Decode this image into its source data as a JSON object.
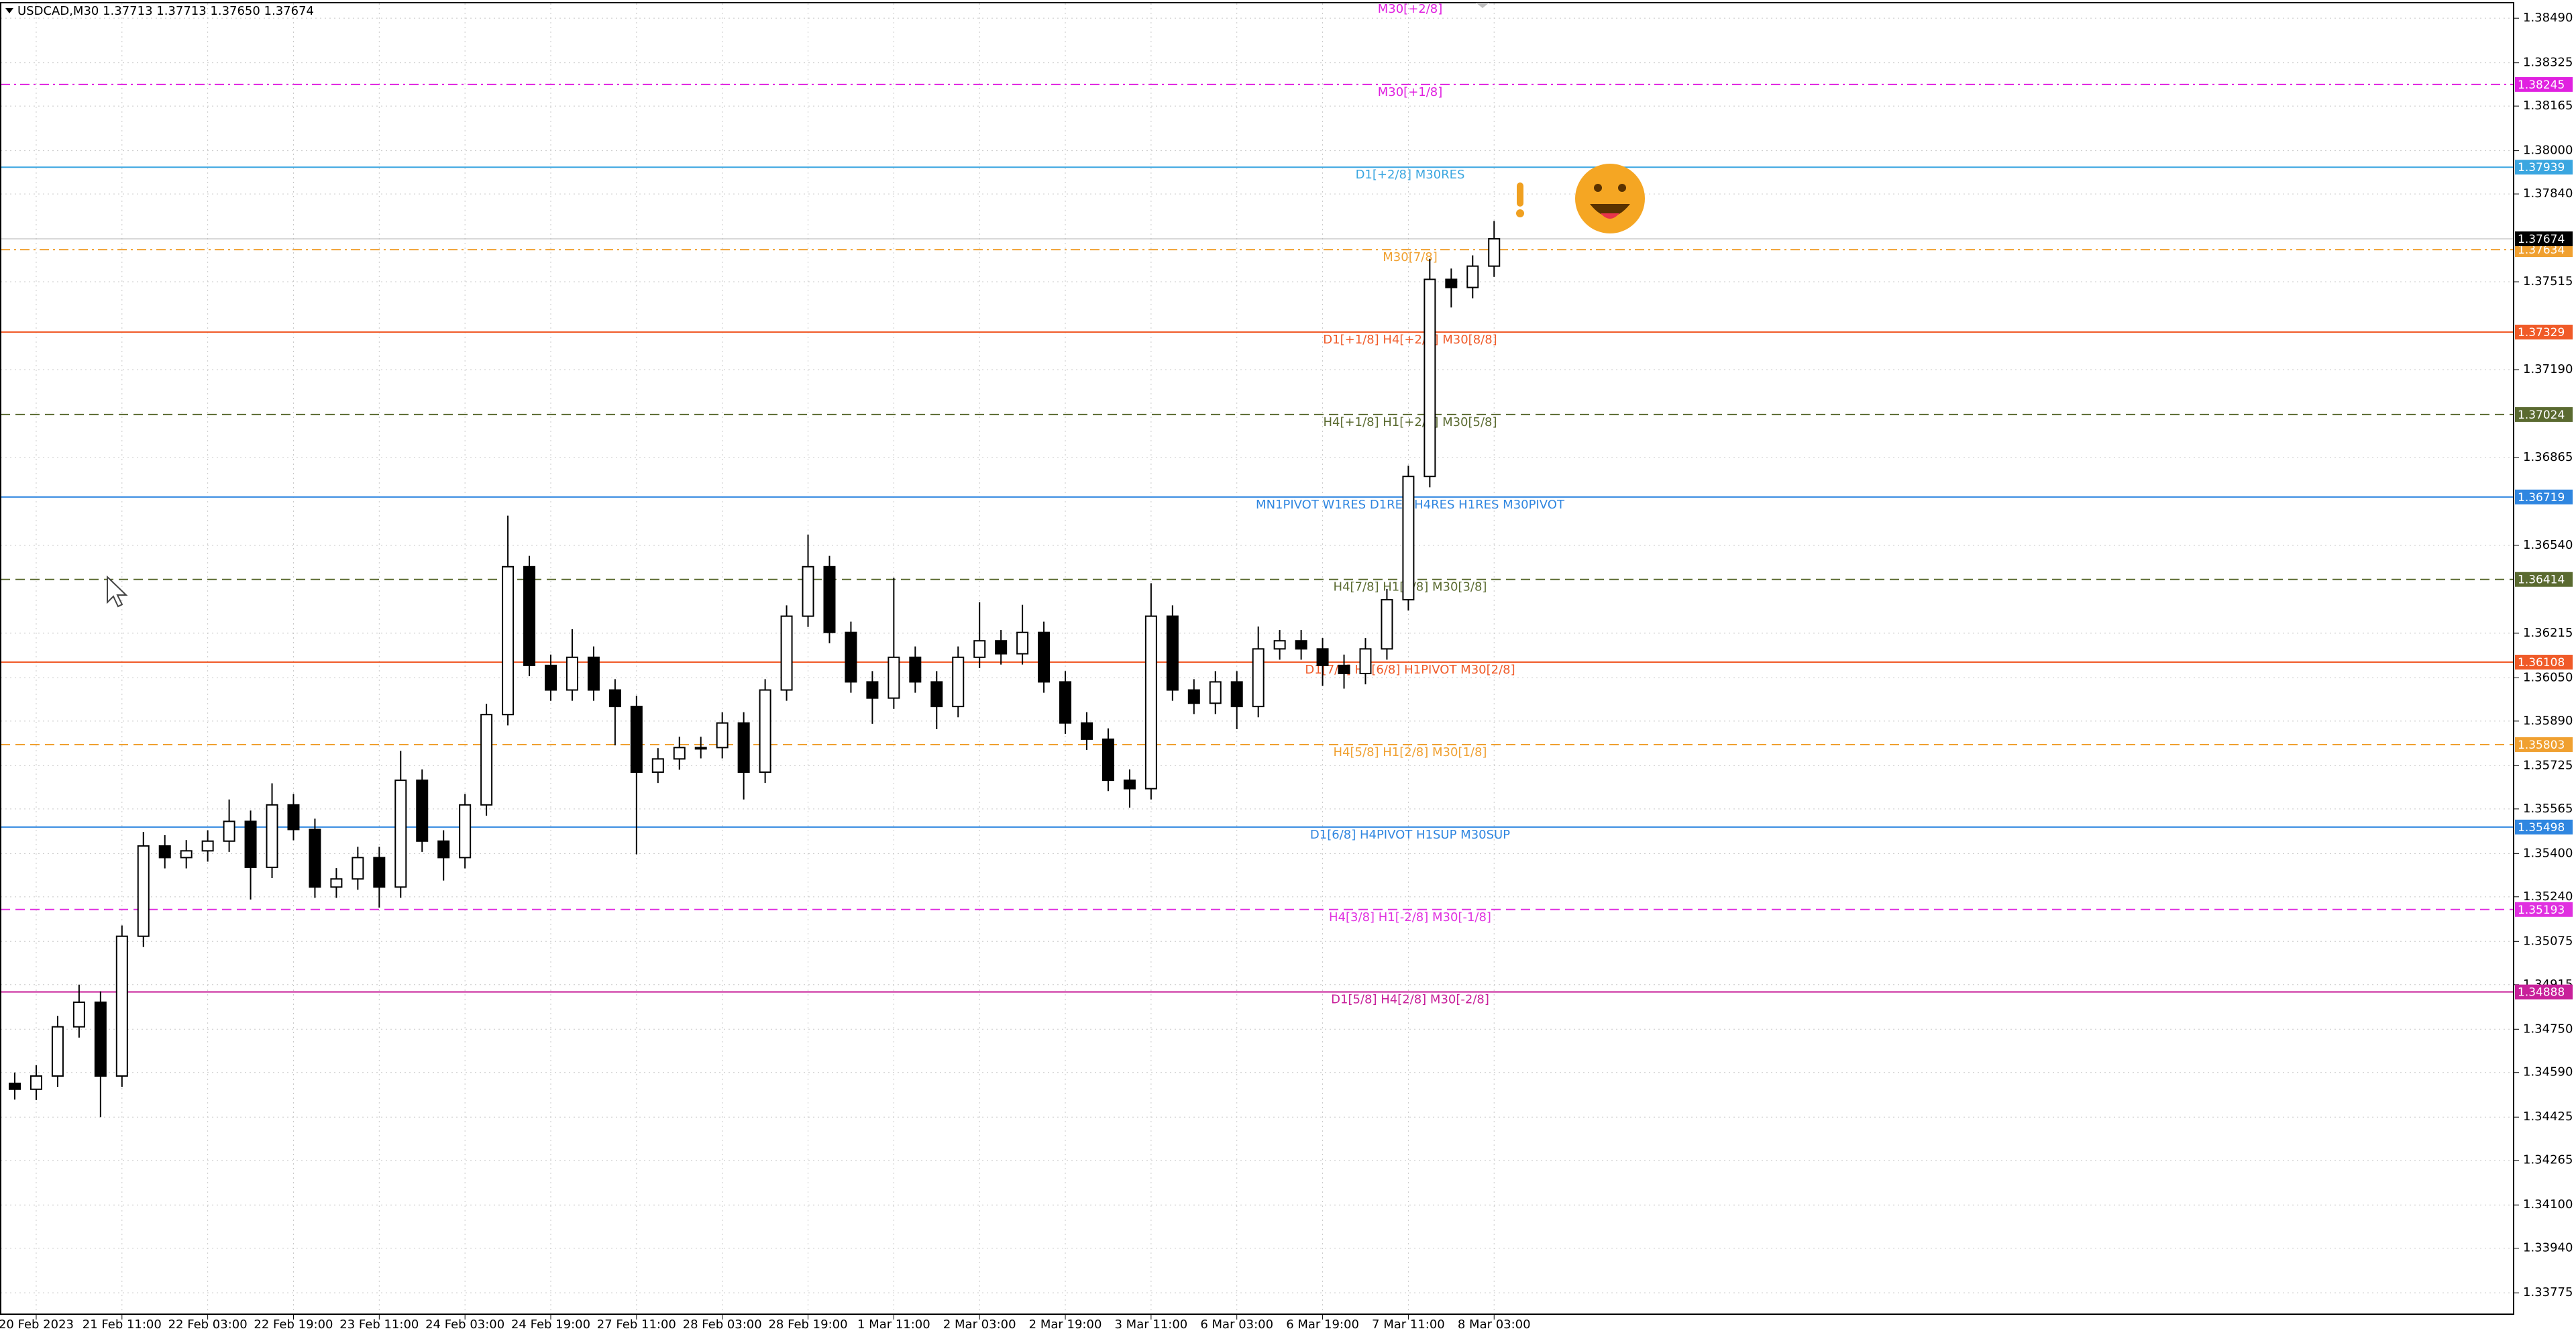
{
  "chart_data": {
    "type": "candlestick",
    "header": "USDCAD,M30  1.37713 1.37713 1.37650 1.37674",
    "top_label": "M30[+2/8]",
    "categories": [
      null,
      "20 Feb 2023",
      null,
      null,
      null,
      "21 Feb 11:00",
      null,
      null,
      null,
      "22 Feb 03:00",
      null,
      null,
      null,
      "22 Feb 19:00",
      null,
      null,
      null,
      "23 Feb 11:00",
      null,
      null,
      null,
      "24 Feb 03:00",
      null,
      null,
      null,
      "24 Feb 19:00",
      null,
      null,
      null,
      "27 Feb 11:00",
      null,
      null,
      null,
      "28 Feb 03:00",
      null,
      null,
      null,
      "28 Feb 19:00",
      null,
      null,
      null,
      "1 Mar 11:00",
      null,
      null,
      null,
      "2 Mar 03:00",
      null,
      null,
      null,
      "2 Mar 19:00",
      null,
      null,
      null,
      "3 Mar 11:00",
      null,
      null,
      null,
      "6 Mar 03:00",
      null,
      null,
      null,
      "6 Mar 19:00",
      null,
      null,
      null,
      "7 Mar 11:00",
      null,
      null,
      null,
      "8 Mar 03:00"
    ],
    "open": [
      1.3455,
      1.34528,
      1.34577,
      1.34759,
      1.3485,
      1.34577,
      1.35094,
      1.35428,
      1.35385,
      1.3541,
      1.35446,
      1.35519,
      1.35349,
      1.3558,
      1.35489,
      1.35276,
      1.35306,
      1.35385,
      1.35276,
      1.35671,
      1.35446,
      1.35385,
      1.3558,
      1.35914,
      1.36461,
      1.36096,
      1.36005,
      1.36126,
      1.36005,
      1.35944,
      1.35701,
      1.3575,
      1.35792,
      1.35792,
      1.35883,
      1.35701,
      1.36005,
      1.36278,
      1.36461,
      1.36218,
      1.36035,
      1.35975,
      1.36126,
      1.36035,
      1.35944,
      1.36126,
      1.36187,
      1.36139,
      1.36218,
      1.36035,
      1.35883,
      1.35823,
      1.35671,
      1.3564,
      1.36278,
      1.36005,
      1.35956,
      1.36035,
      1.35944,
      1.36157,
      1.36187,
      1.36157,
      1.36096,
      1.36066,
      1.36157,
      1.36339,
      1.36795,
      1.37524,
      1.37494,
      1.37573
    ],
    "high": [
      1.3459,
      1.34617,
      1.34799,
      1.34915,
      1.3489,
      1.35134,
      1.3548,
      1.35468,
      1.3545,
      1.35486,
      1.356,
      1.35559,
      1.3566,
      1.3562,
      1.35529,
      1.35346,
      1.35425,
      1.35425,
      1.3578,
      1.35711,
      1.35486,
      1.3562,
      1.35954,
      1.3665,
      1.36501,
      1.36136,
      1.3623,
      1.36166,
      1.36045,
      1.35984,
      1.3579,
      1.35832,
      1.35832,
      1.35923,
      1.35923,
      1.36045,
      1.36318,
      1.3658,
      1.36501,
      1.36258,
      1.36075,
      1.3642,
      1.36166,
      1.36075,
      1.36166,
      1.3633,
      1.36227,
      1.3632,
      1.36258,
      1.36075,
      1.35923,
      1.35863,
      1.35711,
      1.364,
      1.36318,
      1.36045,
      1.36075,
      1.36075,
      1.3624,
      1.36227,
      1.36227,
      1.36197,
      1.36136,
      1.36197,
      1.36379,
      1.36835,
      1.376,
      1.37564,
      1.37613,
      1.3774
    ],
    "low": [
      1.3449,
      1.34488,
      1.34537,
      1.34719,
      1.34425,
      1.34537,
      1.35054,
      1.35345,
      1.35345,
      1.3537,
      1.35406,
      1.3523,
      1.35309,
      1.35449,
      1.35236,
      1.35236,
      1.35266,
      1.352,
      1.35236,
      1.35406,
      1.353,
      1.35345,
      1.3554,
      1.35874,
      1.36056,
      1.35965,
      1.35965,
      1.35965,
      1.358,
      1.35397,
      1.35661,
      1.3571,
      1.35752,
      1.35752,
      1.356,
      1.35661,
      1.35965,
      1.36238,
      1.36178,
      1.35995,
      1.3588,
      1.35935,
      1.35995,
      1.3586,
      1.35904,
      1.36086,
      1.36099,
      1.36099,
      1.35995,
      1.35843,
      1.35783,
      1.35631,
      1.3557,
      1.356,
      1.35965,
      1.35916,
      1.35916,
      1.3586,
      1.35904,
      1.36117,
      1.36117,
      1.3602,
      1.3601,
      1.36026,
      1.36117,
      1.36299,
      1.36755,
      1.3742,
      1.37454,
      1.37533
    ],
    "close": [
      1.34528,
      1.34577,
      1.34759,
      1.3485,
      1.34577,
      1.35094,
      1.35428,
      1.35385,
      1.3541,
      1.35446,
      1.35519,
      1.35349,
      1.3558,
      1.35489,
      1.35276,
      1.35306,
      1.35385,
      1.35276,
      1.35671,
      1.35446,
      1.35385,
      1.3558,
      1.35914,
      1.36461,
      1.36096,
      1.36005,
      1.36126,
      1.36005,
      1.35944,
      1.35701,
      1.3575,
      1.35792,
      1.35792,
      1.35883,
      1.35701,
      1.36005,
      1.36278,
      1.36461,
      1.36218,
      1.36035,
      1.35975,
      1.36126,
      1.36035,
      1.35944,
      1.36126,
      1.36187,
      1.36139,
      1.36218,
      1.36035,
      1.35883,
      1.35823,
      1.35671,
      1.3564,
      1.36278,
      1.36005,
      1.35956,
      1.36035,
      1.35944,
      1.36157,
      1.36187,
      1.36157,
      1.36096,
      1.36066,
      1.36157,
      1.36339,
      1.36795,
      1.37524,
      1.37494,
      1.37573,
      1.37674
    ],
    "levels": [
      {
        "label": "M30[+1/8]",
        "value": 1.38245,
        "color": "#e020e0",
        "line_style": "dashdot"
      },
      {
        "label": "D1[+2/8] M30RES",
        "value": 1.37939,
        "color": "#3aa6e0",
        "line_style": "solid"
      },
      {
        "label": "M30[7/8]",
        "value": 1.37634,
        "color": "#f0a030",
        "line_style": "dashdot"
      },
      {
        "label": "D1[+1/8] H4[+2/8] M30[8/8]",
        "value": 1.37329,
        "color": "#f05a28",
        "line_style": "solid"
      },
      {
        "label": "H4[+1/8] H1[+2/8] M30[5/8]",
        "value": 1.37024,
        "color": "#5a6a30",
        "line_style": "dashed"
      },
      {
        "label": "MN1PIVOT W1RES D1RES H4RES H1RES M30PIVOT",
        "value": 1.36719,
        "color": "#2f86e0",
        "line_style": "solid"
      },
      {
        "label": "H4[7/8] H1[6/8] M30[3/8]",
        "value": 1.36414,
        "color": "#5a6a30",
        "line_style": "dashed"
      },
      {
        "label": "D1[7/8] H4[6/8] H1PIVOT M30[2/8]",
        "value": 1.36108,
        "color": "#f05a28",
        "line_style": "solid"
      },
      {
        "label": "H4[5/8] H1[2/8] M30[1/8]",
        "value": 1.35803,
        "color": "#f0a030",
        "line_style": "dashed"
      },
      {
        "label": "D1[6/8] H4PIVOT H1SUP M30SUP",
        "value": 1.35498,
        "color": "#2f86e0",
        "line_style": "solid"
      },
      {
        "label": "H4[3/8] H1[-2/8] M30[-1/8]",
        "value": 1.35193,
        "color": "#e030e0",
        "line_style": "dashed"
      },
      {
        "label": "D1[5/8] H4[2/8] M30[-2/8]",
        "value": 1.34888,
        "color": "#c8209a",
        "line_style": "solid"
      }
    ],
    "ylim": [
      1.33696,
      1.38545
    ],
    "yticks": [
      {
        "value": 1.3849,
        "label": "1.38490"
      },
      {
        "value": 1.38325,
        "label": "1.38325"
      },
      {
        "value": 1.38165,
        "label": "1.38165"
      },
      {
        "value": 1.38,
        "label": "1.38000"
      },
      {
        "value": 1.3784,
        "label": "1.37840"
      },
      {
        "value": 1.37515,
        "label": "1.37515"
      },
      {
        "value": 1.3719,
        "label": "1.37190"
      },
      {
        "value": 1.36865,
        "label": "1.36865"
      },
      {
        "value": 1.3654,
        "label": "1.36540"
      },
      {
        "value": 1.36215,
        "label": "1.36215"
      },
      {
        "value": 1.3605,
        "label": "1.36050"
      },
      {
        "value": 1.3589,
        "label": "1.35890"
      },
      {
        "value": 1.35725,
        "label": "1.35725"
      },
      {
        "value": 1.35565,
        "label": "1.35565"
      },
      {
        "value": 1.354,
        "label": "1.35400"
      },
      {
        "value": 1.3524,
        "label": "1.35240"
      },
      {
        "value": 1.35075,
        "label": "1.35075"
      },
      {
        "value": 1.34915,
        "label": "1.34915"
      },
      {
        "value": 1.3475,
        "label": "1.34750"
      },
      {
        "value": 1.3459,
        "label": "1.34590"
      },
      {
        "value": 1.34425,
        "label": "1.34425"
      },
      {
        "value": 1.34265,
        "label": "1.34265"
      },
      {
        "value": 1.341,
        "label": "1.34100"
      },
      {
        "value": 1.3394,
        "label": "1.33940"
      },
      {
        "value": 1.33775,
        "label": "1.33775"
      }
    ],
    "grid": true,
    "bull_color": "#ffffff",
    "bear_color": "#000000"
  }
}
